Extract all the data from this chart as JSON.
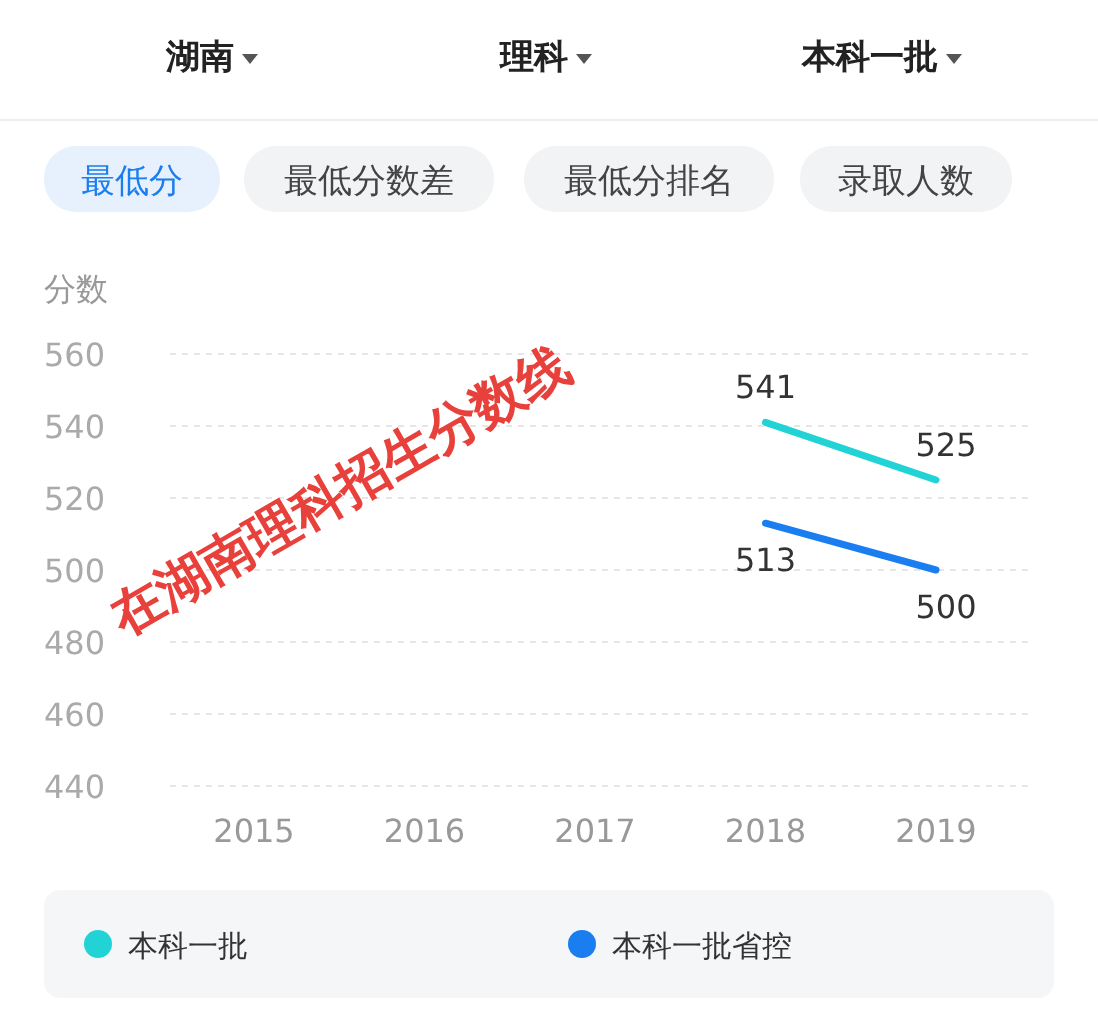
{
  "chart_data": {
    "type": "line",
    "ylabel": "分数",
    "categories": [
      "2015",
      "2016",
      "2017",
      "2018",
      "2019"
    ],
    "ylim": [
      440,
      560
    ],
    "yticks": [
      440,
      460,
      480,
      500,
      520,
      540,
      560
    ],
    "grid": "y",
    "legend": "bottom",
    "marker": "none",
    "line_style": "solid",
    "data_labels": true,
    "series": [
      {
        "name": "本科一批",
        "color": "#22d3d6",
        "values": [
          null,
          null,
          null,
          541,
          525
        ]
      },
      {
        "name": "本科一批省控",
        "color": "#1a7df0",
        "values": [
          null,
          null,
          null,
          513,
          500
        ]
      }
    ],
    "annotations": [
      "湖南",
      "理科",
      "本科一批",
      "最低分",
      "最低分数差",
      "最低分排名",
      "录取人数",
      "在湖南理科招生分数线"
    ]
  }
}
